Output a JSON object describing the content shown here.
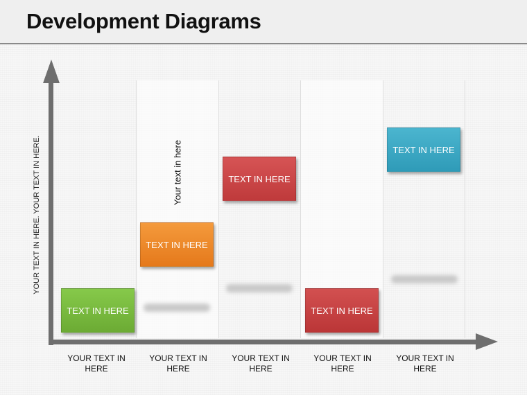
{
  "title": "Development Diagrams",
  "y_axis_label": "YOUR TEXT IN HERE. YOUR TEXT IN HERE.",
  "vertical_note": "Your text in here",
  "boxes": [
    {
      "label": "TEXT IN HERE",
      "color": "#78b83e"
    },
    {
      "label": "TEXT IN HERE",
      "color": "#ee8a2c"
    },
    {
      "label": "TEXT IN HERE",
      "color": "#cc4647"
    },
    {
      "label": "TEXT IN HERE",
      "color": "#c94344"
    },
    {
      "label": "TEXT IN HERE",
      "color": "#3aa7c4"
    }
  ],
  "categories": [
    {
      "line1": "YOUR TEXT IN",
      "line2": "HERE"
    },
    {
      "line1": "YOUR TEXT IN",
      "line2": "HERE"
    },
    {
      "line1": "YOUR TEXT IN",
      "line2": "HERE"
    },
    {
      "line1": "YOUR TEXT IN",
      "line2": "HERE"
    },
    {
      "line1": "YOUR TEXT IN",
      "line2": "HERE"
    }
  ]
}
